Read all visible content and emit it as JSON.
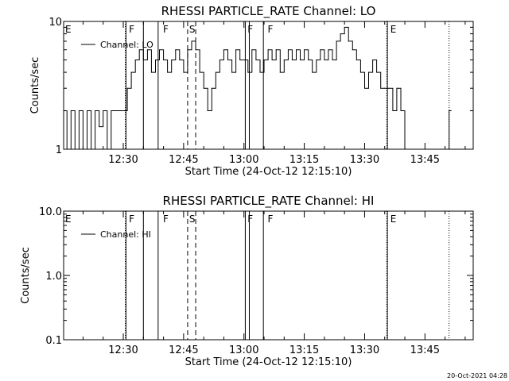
{
  "footer": {
    "timestamp": "20-Oct-2021 04:28"
  },
  "chart_data": [
    {
      "type": "line",
      "title": "RHESSI PARTICLE_RATE Channel: LO",
      "xlabel": "Start Time (24-Oct-12 12:15:10)",
      "ylabel": "Counts/sec",
      "yscale": "log",
      "ylim": [
        1,
        10
      ],
      "ytick_labels": [
        "1",
        "10"
      ],
      "xlim": [
        "12:15:10",
        "13:57:00"
      ],
      "xtick_labels": [
        "12:30",
        "12:45",
        "13:00",
        "13:15",
        "13:30",
        "13:45"
      ],
      "legend": {
        "placement": "top-left",
        "entries": [
          "Channel: LO"
        ]
      },
      "flags": [
        {
          "letter": "E",
          "time": "12:15:10"
        },
        {
          "letter": "F",
          "time": "12:31:00"
        },
        {
          "letter": "F",
          "time": "12:39:30"
        },
        {
          "letter": "S",
          "time": "12:46:00"
        },
        {
          "letter": "F",
          "time": "13:00:30"
        },
        {
          "letter": "F",
          "time": "13:05:30"
        },
        {
          "letter": "E",
          "time": "13:36:00"
        }
      ],
      "dotted_lines": [
        "12:30:30",
        "13:35:30",
        "13:51:00"
      ],
      "solid_lines": [
        "12:30:40",
        "12:35:00",
        "12:38:40",
        "13:00:20",
        "13:01:20",
        "13:04:50",
        "13:35:40"
      ],
      "dashed_lines": [
        "12:46:00",
        "12:48:00"
      ],
      "series": [
        {
          "name": "Channel: LO",
          "x": [
            "12:15:10",
            "12:16:00",
            "12:17:00",
            "12:18:00",
            "12:19:00",
            "12:20:00",
            "12:21:00",
            "12:22:00",
            "12:23:00",
            "12:24:00",
            "12:25:00",
            "12:26:00",
            "12:27:00",
            "12:28:00",
            "12:29:00",
            "12:30:00",
            "12:31:00",
            "12:32:00",
            "12:33:00",
            "12:34:00",
            "12:35:00",
            "12:36:00",
            "12:37:00",
            "12:38:00",
            "12:39:00",
            "12:40:00",
            "12:41:00",
            "12:42:00",
            "12:43:00",
            "12:44:00",
            "12:45:00",
            "12:46:00",
            "12:47:00",
            "12:48:00",
            "12:49:00",
            "12:50:00",
            "12:51:00",
            "12:52:00",
            "12:53:00",
            "12:54:00",
            "12:55:00",
            "12:56:00",
            "12:57:00",
            "12:58:00",
            "12:59:00",
            "13:00:00",
            "13:01:00",
            "13:02:00",
            "13:03:00",
            "13:04:00",
            "13:05:00",
            "13:06:00",
            "13:07:00",
            "13:08:00",
            "13:09:00",
            "13:10:00",
            "13:11:00",
            "13:12:00",
            "13:13:00",
            "13:14:00",
            "13:15:00",
            "13:16:00",
            "13:17:00",
            "13:18:00",
            "13:19:00",
            "13:20:00",
            "13:21:00",
            "13:22:00",
            "13:23:00",
            "13:24:00",
            "13:25:00",
            "13:26:00",
            "13:27:00",
            "13:28:00",
            "13:29:00",
            "13:30:00",
            "13:31:00",
            "13:32:00",
            "13:33:00",
            "13:34:00",
            "13:35:00",
            "13:36:00",
            "13:37:00",
            "13:38:00",
            "13:39:00",
            "13:40:00",
            "13:41:00",
            "13:42:00",
            "13:43:00",
            "13:44:00",
            "13:45:00",
            "13:46:00",
            "13:47:00",
            "13:48:00",
            "13:49:00",
            "13:50:00",
            "13:51:00"
          ],
          "y": [
            2,
            1,
            2,
            1,
            2,
            1,
            2,
            1,
            2,
            1.5,
            2,
            1,
            2,
            2,
            2,
            2,
            3,
            4,
            5,
            6,
            5,
            6,
            4,
            5,
            6,
            5,
            4,
            5,
            6,
            5,
            4,
            6,
            7,
            6,
            4,
            3,
            2,
            3,
            4,
            5,
            6,
            5,
            4,
            6,
            5,
            5,
            4,
            6,
            5,
            4,
            5,
            6,
            5,
            6,
            4,
            5,
            6,
            5,
            6,
            5,
            6,
            5,
            4,
            5,
            6,
            5,
            6,
            5,
            7,
            8,
            9,
            7,
            6,
            5,
            4,
            3,
            4,
            5,
            4,
            3,
            3,
            3,
            2,
            3,
            2,
            1,
            1,
            1,
            1,
            1,
            1,
            1,
            1,
            1,
            1,
            1,
            2
          ]
        }
      ]
    },
    {
      "type": "line",
      "title": "RHESSI PARTICLE_RATE Channel: HI",
      "xlabel": "Start Time (24-Oct-12 12:15:10)",
      "ylabel": "Counts/sec",
      "yscale": "log",
      "ylim": [
        0.1,
        10
      ],
      "ytick_labels": [
        "0.1",
        "1.0",
        "10.0"
      ],
      "xlim": [
        "12:15:10",
        "13:57:00"
      ],
      "xtick_labels": [
        "12:30",
        "12:45",
        "13:00",
        "13:15",
        "13:30",
        "13:45"
      ],
      "legend": {
        "placement": "top-left",
        "entries": [
          "Channel: HI"
        ]
      },
      "flags": [
        {
          "letter": "E",
          "time": "12:15:10"
        },
        {
          "letter": "F",
          "time": "12:31:00"
        },
        {
          "letter": "F",
          "time": "12:39:30"
        },
        {
          "letter": "S",
          "time": "12:46:00"
        },
        {
          "letter": "F",
          "time": "13:00:30"
        },
        {
          "letter": "F",
          "time": "13:05:30"
        },
        {
          "letter": "E",
          "time": "13:36:00"
        }
      ],
      "dotted_lines": [
        "12:30:30",
        "13:35:30",
        "13:51:00"
      ],
      "solid_lines": [
        "12:30:40",
        "12:35:00",
        "12:38:40",
        "13:00:20",
        "13:01:20",
        "13:04:50",
        "13:35:40"
      ],
      "dashed_lines": [
        "12:46:00",
        "12:48:00"
      ],
      "series": [
        {
          "name": "Channel: HI",
          "x": [],
          "y": []
        }
      ]
    }
  ]
}
